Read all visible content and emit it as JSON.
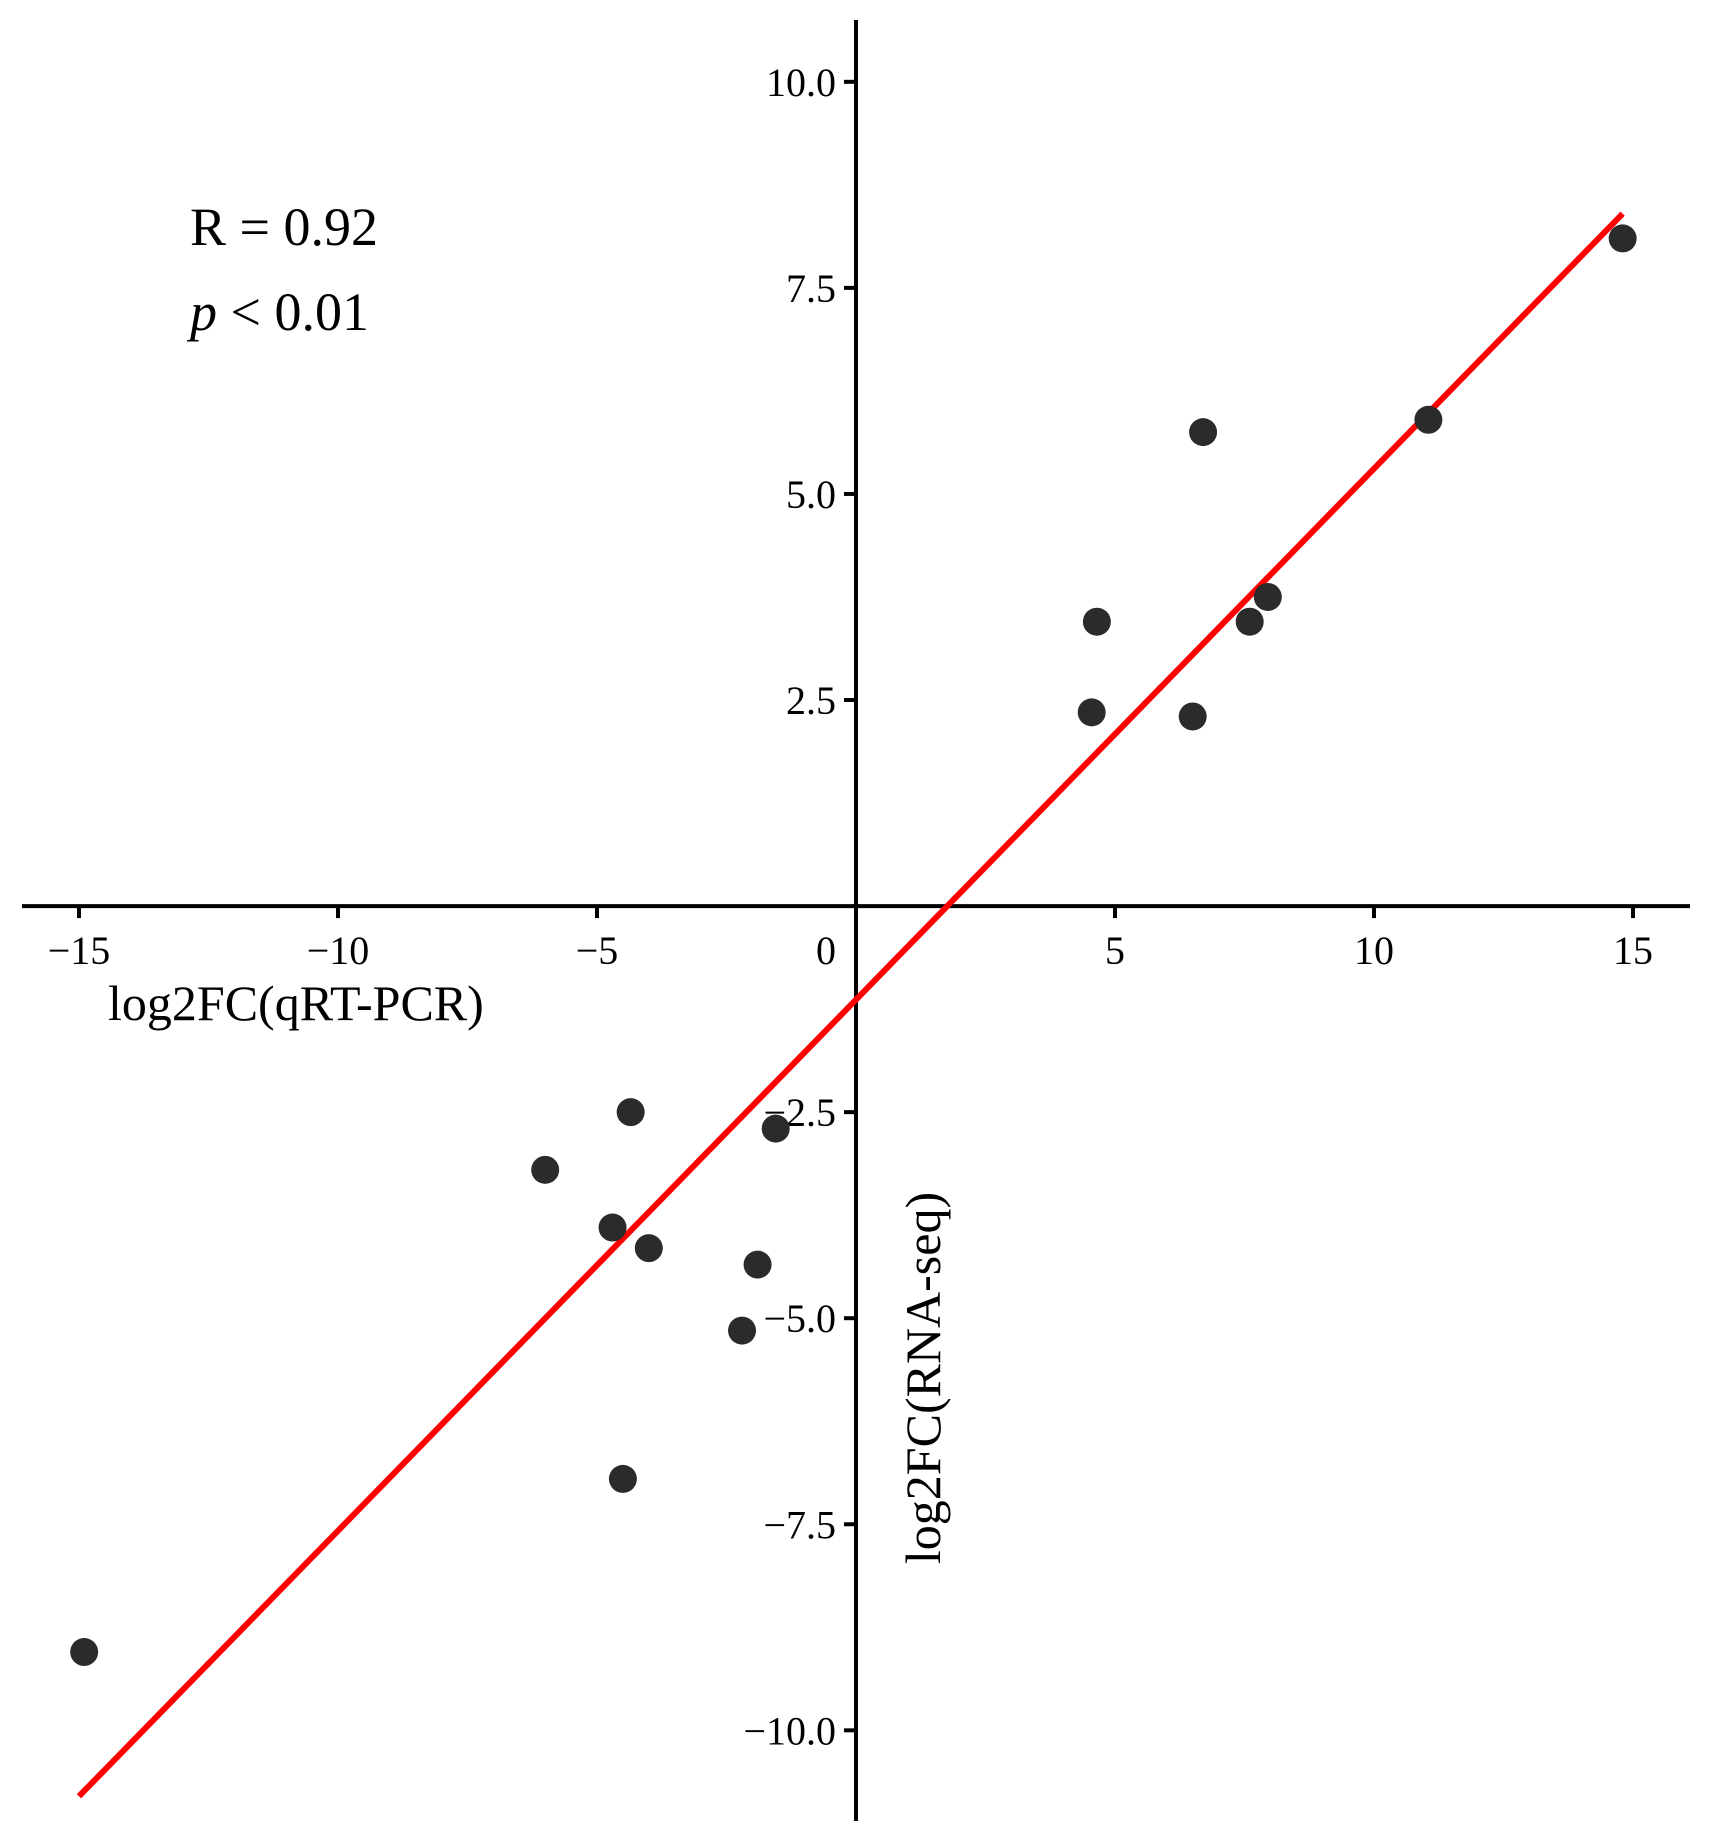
{
  "chart_data": {
    "type": "scatter",
    "title": "",
    "xlabel": "log2FC(qRT-PCR)",
    "ylabel": "log2FC(RNA-seq)",
    "xlim": [
      -16.1,
      16.1
    ],
    "ylim": [
      -11.1,
      10.75
    ],
    "x_ticks": [
      -15,
      -10,
      -5,
      0,
      5,
      10,
      15
    ],
    "x_tick_labels": [
      "−15",
      "−10",
      "−5",
      "0",
      "5",
      "10",
      "15"
    ],
    "y_ticks": [
      -10,
      -7.5,
      -5,
      -2.5,
      2.5,
      5,
      7.5,
      10
    ],
    "y_tick_labels": [
      "−10.0",
      "−7.5",
      "−5.0",
      "−2.5",
      "2.5",
      "5.0",
      "7.5",
      "10.0"
    ],
    "grid": false,
    "legend": "none",
    "points": [
      {
        "x": -14.9,
        "y": -9.05
      },
      {
        "x": -6.0,
        "y": -3.2
      },
      {
        "x": -4.7,
        "y": -3.9
      },
      {
        "x": -4.35,
        "y": -2.5
      },
      {
        "x": -4.0,
        "y": -4.15
      },
      {
        "x": -4.5,
        "y": -6.95
      },
      {
        "x": -1.9,
        "y": -4.35
      },
      {
        "x": -1.55,
        "y": -2.7
      },
      {
        "x": -2.2,
        "y": -5.15
      },
      {
        "x": 4.55,
        "y": 2.35
      },
      {
        "x": 4.65,
        "y": 3.45
      },
      {
        "x": 6.5,
        "y": 2.3
      },
      {
        "x": 6.7,
        "y": 5.75
      },
      {
        "x": 7.6,
        "y": 3.45
      },
      {
        "x": 7.95,
        "y": 3.75
      },
      {
        "x": 11.05,
        "y": 5.9
      },
      {
        "x": 14.8,
        "y": 8.1
      }
    ],
    "fit_line": {
      "x": [
        -15.0,
        14.8
      ],
      "y": [
        -10.8,
        8.4
      ]
    },
    "annotations": {
      "r_text": "R = 0.92",
      "p_symbol": "p",
      "p_text": " < 0.01"
    },
    "colors": {
      "points": "#2b2b2b",
      "fit_line": "#ff0000",
      "axes": "#000000"
    }
  }
}
